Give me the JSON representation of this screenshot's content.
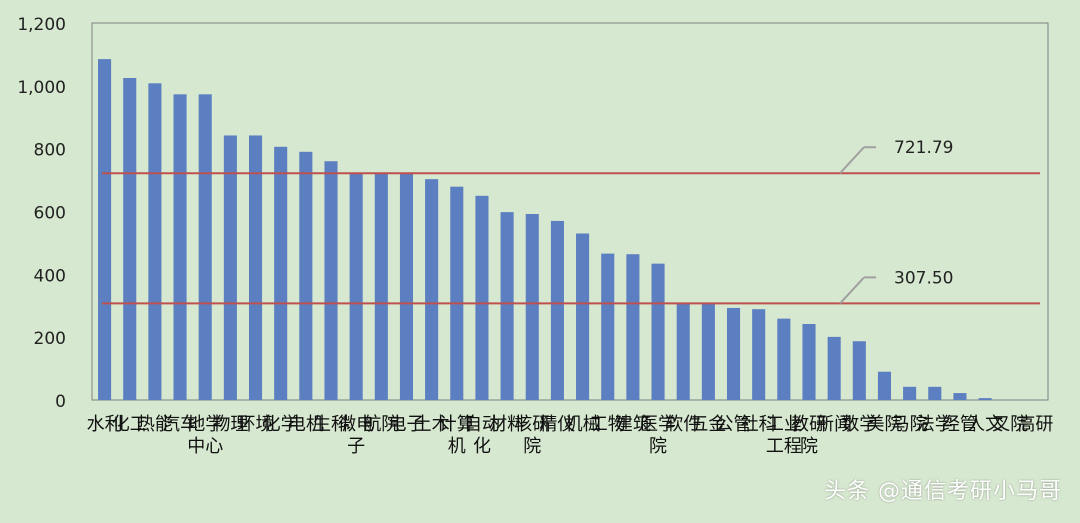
{
  "chart_data": {
    "type": "bar",
    "categories": [
      "水利",
      "化工",
      "热能",
      "汽车",
      "地学中心",
      "物理",
      "环境",
      "化学",
      "电机",
      "生科",
      "微电子",
      "航院",
      "电子",
      "土木",
      "计算机",
      "自动化",
      "材料",
      "核研院",
      "精仪",
      "机械",
      "工物",
      "建筑",
      "医学院",
      "软件",
      "五金",
      "公管",
      "社科",
      "工业工程",
      "教研院",
      "新闻",
      "数学",
      "美院",
      "马院",
      "法学",
      "经管",
      "人文",
      "叉院",
      "高研"
    ],
    "values": [
      1085,
      1025,
      1008,
      973,
      973,
      842,
      842,
      806,
      790,
      760,
      724,
      724,
      724,
      703,
      679,
      650,
      598,
      592,
      570,
      530,
      466,
      464,
      434,
      308,
      308,
      293,
      289,
      259,
      242,
      201,
      187,
      90,
      42,
      42,
      22,
      6,
      0,
      0
    ],
    "reference_lines": [
      {
        "value": 721.79,
        "label": "721.79",
        "color": "#c0504d"
      },
      {
        "value": 307.5,
        "label": "307.50",
        "color": "#c0504d"
      }
    ],
    "ylim": [
      0,
      1200
    ],
    "yticks": [
      0,
      200,
      400,
      600,
      800,
      1000,
      1200
    ],
    "ytick_labels": [
      "0",
      "200",
      "400",
      "600",
      "800",
      "1,000",
      "1,200"
    ],
    "title": "",
    "xlabel": "",
    "ylabel": "",
    "bar_color": "#5b7fc0",
    "background": "#d7e8d0",
    "grid": false
  },
  "watermark": {
    "text": "头条 @通信考研小马哥"
  }
}
